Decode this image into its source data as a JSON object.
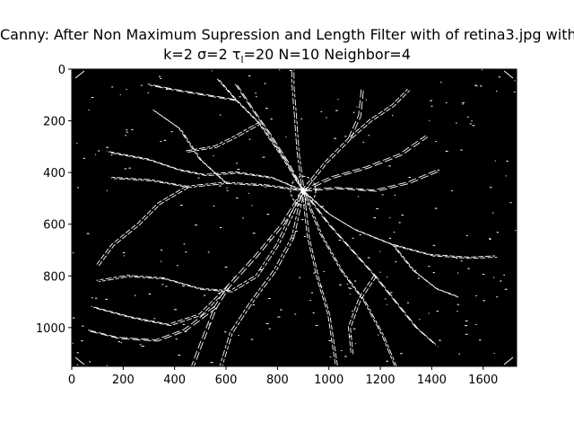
{
  "chart_data": {
    "type": "heatmap",
    "title_line_1": "Canny: After Non Maximum Supression and Length Filter with of retina3.jpg with",
    "title_line_2": "k=2 σ=2 τ",
    "title_line_2_subscript": "l",
    "title_line_2_rest": "=20 N=10 Neighbor=4",
    "xlim": [
      0,
      1730
    ],
    "ylim": [
      1150,
      0
    ],
    "x_ticks": [
      "0",
      "200",
      "400",
      "600",
      "800",
      "1000",
      "1200",
      "1400",
      "1600"
    ],
    "y_ticks": [
      "0",
      "200",
      "400",
      "600",
      "800",
      "1000"
    ],
    "x_tick_values": [
      0,
      200,
      400,
      600,
      800,
      1000,
      1200,
      1400,
      1600
    ],
    "y_tick_values": [
      0,
      200,
      400,
      600,
      800,
      1000
    ],
    "background_color": "#000000",
    "edge_color": "#ffffff",
    "optic_disc_center": [
      900,
      470
    ],
    "vessels": [
      [
        [
          900,
          470
        ],
        [
          820,
          340
        ],
        [
          730,
          210
        ],
        [
          640,
          120
        ],
        [
          570,
          40
        ]
      ],
      [
        [
          900,
          470
        ],
        [
          840,
          360
        ],
        [
          770,
          250
        ],
        [
          700,
          150
        ],
        [
          640,
          60
        ]
      ],
      [
        [
          900,
          470
        ],
        [
          880,
          320
        ],
        [
          870,
          180
        ],
        [
          860,
          60
        ],
        [
          860,
          0
        ]
      ],
      [
        [
          900,
          470
        ],
        [
          990,
          360
        ],
        [
          1080,
          270
        ],
        [
          1160,
          200
        ],
        [
          1250,
          140
        ],
        [
          1310,
          80
        ]
      ],
      [
        [
          900,
          470
        ],
        [
          1010,
          420
        ],
        [
          1150,
          380
        ],
        [
          1280,
          330
        ],
        [
          1380,
          260
        ]
      ],
      [
        [
          900,
          470
        ],
        [
          760,
          450
        ],
        [
          600,
          440
        ],
        [
          450,
          455
        ],
        [
          310,
          430
        ],
        [
          150,
          420
        ]
      ],
      [
        [
          900,
          470
        ],
        [
          780,
          420
        ],
        [
          640,
          400
        ],
        [
          520,
          410
        ],
        [
          420,
          390
        ],
        [
          300,
          350
        ],
        [
          140,
          320
        ]
      ],
      [
        [
          900,
          470
        ],
        [
          820,
          600
        ],
        [
          720,
          720
        ],
        [
          610,
          840
        ],
        [
          560,
          920
        ],
        [
          500,
          1070
        ],
        [
          470,
          1150
        ]
      ],
      [
        [
          900,
          470
        ],
        [
          860,
          650
        ],
        [
          790,
          780
        ],
        [
          700,
          900
        ],
        [
          620,
          1020
        ],
        [
          580,
          1150
        ]
      ],
      [
        [
          900,
          470
        ],
        [
          1000,
          560
        ],
        [
          1100,
          620
        ],
        [
          1250,
          680
        ],
        [
          1400,
          720
        ],
        [
          1550,
          730
        ],
        [
          1650,
          725
        ]
      ],
      [
        [
          900,
          470
        ],
        [
          1000,
          600
        ],
        [
          1090,
          700
        ],
        [
          1180,
          800
        ],
        [
          1260,
          900
        ],
        [
          1340,
          1000
        ],
        [
          1420,
          1070
        ]
      ],
      [
        [
          900,
          470
        ],
        [
          970,
          640
        ],
        [
          1050,
          780
        ],
        [
          1140,
          900
        ],
        [
          1210,
          1030
        ],
        [
          1260,
          1150
        ]
      ],
      [
        [
          900,
          470
        ],
        [
          920,
          650
        ],
        [
          960,
          820
        ],
        [
          1000,
          950
        ],
        [
          1030,
          1150
        ]
      ],
      [
        [
          900,
          470
        ],
        [
          1030,
          460
        ],
        [
          1180,
          470
        ],
        [
          1310,
          440
        ],
        [
          1430,
          390
        ]
      ],
      [
        [
          900,
          470
        ],
        [
          800,
          680
        ],
        [
          720,
          800
        ],
        [
          620,
          860
        ],
        [
          500,
          850
        ],
        [
          360,
          810
        ],
        [
          220,
          800
        ],
        [
          100,
          820
        ]
      ],
      [
        [
          610,
          840
        ],
        [
          500,
          950
        ],
        [
          380,
          990
        ],
        [
          230,
          960
        ],
        [
          80,
          920
        ]
      ],
      [
        [
          560,
          920
        ],
        [
          440,
          1010
        ],
        [
          330,
          1050
        ],
        [
          180,
          1040
        ],
        [
          60,
          1010
        ]
      ],
      [
        [
          600,
          440
        ],
        [
          500,
          350
        ],
        [
          420,
          230
        ],
        [
          320,
          160
        ]
      ],
      [
        [
          450,
          455
        ],
        [
          340,
          520
        ],
        [
          260,
          600
        ],
        [
          160,
          680
        ],
        [
          100,
          760
        ]
      ],
      [
        [
          1080,
          270
        ],
        [
          1120,
          180
        ],
        [
          1130,
          80
        ]
      ],
      [
        [
          1250,
          680
        ],
        [
          1330,
          780
        ],
        [
          1420,
          850
        ],
        [
          1500,
          880
        ]
      ],
      [
        [
          1180,
          800
        ],
        [
          1120,
          890
        ],
        [
          1080,
          1000
        ],
        [
          1090,
          1100
        ]
      ],
      [
        [
          640,
          120
        ],
        [
          520,
          100
        ],
        [
          400,
          80
        ],
        [
          300,
          60
        ]
      ],
      [
        [
          730,
          210
        ],
        [
          640,
          260
        ],
        [
          560,
          300
        ],
        [
          440,
          320
        ]
      ]
    ]
  }
}
